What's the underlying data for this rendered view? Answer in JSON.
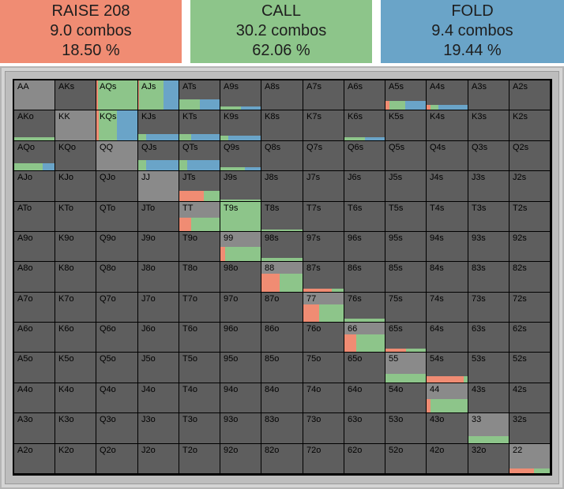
{
  "colors": {
    "raise": "#f08c73",
    "call": "#8dc58a",
    "fold": "#6aa4c8",
    "cell": "#5e5e5e",
    "gray": "#8a8a8a"
  },
  "summary": [
    {
      "action": "RAISE 208",
      "combos": "9.0 combos",
      "percent": "18.50 %",
      "color": "#f08c73"
    },
    {
      "action": "CALL",
      "combos": "30.2 combos",
      "percent": "62.06 %",
      "color": "#8dc58a"
    },
    {
      "action": "FOLD",
      "combos": "9.4 combos",
      "percent": "19.44 %",
      "color": "#6aa4c8"
    }
  ],
  "grid": [
    [
      "AA",
      "AKs",
      "AQs",
      "AJs",
      "ATs",
      "A9s",
      "A8s",
      "A7s",
      "A6s",
      "A5s",
      "A4s",
      "A3s",
      "A2s"
    ],
    [
      "AKo",
      "KK",
      "KQs",
      "KJs",
      "KTs",
      "K9s",
      "K8s",
      "K7s",
      "K6s",
      "K5s",
      "K4s",
      "K3s",
      "K2s"
    ],
    [
      "AQo",
      "KQo",
      "QQ",
      "QJs",
      "QTs",
      "Q9s",
      "Q8s",
      "Q7s",
      "Q6s",
      "Q5s",
      "Q4s",
      "Q3s",
      "Q2s"
    ],
    [
      "AJo",
      "KJo",
      "QJo",
      "JJ",
      "JTs",
      "J9s",
      "J8s",
      "J7s",
      "J6s",
      "J5s",
      "J4s",
      "J3s",
      "J2s"
    ],
    [
      "ATo",
      "KTo",
      "QTo",
      "JTo",
      "TT",
      "T9s",
      "T8s",
      "T7s",
      "T6s",
      "T5s",
      "T4s",
      "T3s",
      "T2s"
    ],
    [
      "A9o",
      "K9o",
      "Q9o",
      "J9o",
      "T9o",
      "99",
      "98s",
      "97s",
      "96s",
      "95s",
      "94s",
      "93s",
      "92s"
    ],
    [
      "A8o",
      "K8o",
      "Q8o",
      "J8o",
      "T8o",
      "98o",
      "88",
      "87s",
      "86s",
      "85s",
      "84s",
      "83s",
      "82s"
    ],
    [
      "A7o",
      "K7o",
      "Q7o",
      "J7o",
      "T7o",
      "97o",
      "87o",
      "77",
      "76s",
      "75s",
      "74s",
      "73s",
      "72s"
    ],
    [
      "A6o",
      "K6o",
      "Q6o",
      "J6o",
      "T6o",
      "96o",
      "86o",
      "76o",
      "66",
      "65s",
      "64s",
      "63s",
      "62s"
    ],
    [
      "A5o",
      "K5o",
      "Q5o",
      "J5o",
      "T5o",
      "95o",
      "85o",
      "75o",
      "65o",
      "55",
      "54s",
      "53s",
      "52s"
    ],
    [
      "A4o",
      "K4o",
      "Q4o",
      "J4o",
      "T4o",
      "94o",
      "84o",
      "74o",
      "64o",
      "54o",
      "44",
      "43s",
      "42s"
    ],
    [
      "A3o",
      "K3o",
      "Q3o",
      "J3o",
      "T3o",
      "93o",
      "83o",
      "73o",
      "63o",
      "53o",
      "43o",
      "33",
      "32s"
    ],
    [
      "A2o",
      "K2o",
      "Q2o",
      "J2o",
      "T2o",
      "92o",
      "82o",
      "72o",
      "62o",
      "52o",
      "42o",
      "32o",
      "22"
    ]
  ],
  "hand_strategy": {
    "AA": {
      "weight": 1.0,
      "raise": 0.0,
      "call": 0.0,
      "fold": 0.0
    },
    "AQs": {
      "weight": 1.0,
      "raise": 0.03,
      "call": 0.97,
      "fold": 0.0
    },
    "AJs": {
      "weight": 1.0,
      "raise": 0.02,
      "call": 0.6,
      "fold": 0.38
    },
    "ATs": {
      "weight": 0.35,
      "raise": 0.0,
      "call": 0.5,
      "fold": 0.5
    },
    "A9s": {
      "weight": 0.12,
      "raise": 0.0,
      "call": 0.5,
      "fold": 0.5
    },
    "A5s": {
      "weight": 0.3,
      "raise": 0.1,
      "call": 0.4,
      "fold": 0.5
    },
    "A4s": {
      "weight": 0.15,
      "raise": 0.1,
      "call": 0.2,
      "fold": 0.7
    },
    "AKo": {
      "weight": 0.1,
      "raise": 0.0,
      "call": 1.0,
      "fold": 0.0
    },
    "KK": {
      "weight": 1.0,
      "raise": 0.0,
      "call": 0.0,
      "fold": 0.0
    },
    "KQs": {
      "weight": 1.0,
      "raise": 0.06,
      "call": 0.44,
      "fold": 0.5
    },
    "KJs": {
      "weight": 0.2,
      "raise": 0.0,
      "call": 0.2,
      "fold": 0.8
    },
    "KTs": {
      "weight": 0.2,
      "raise": 0.0,
      "call": 0.3,
      "fold": 0.7
    },
    "K9s": {
      "weight": 0.15,
      "raise": 0.0,
      "call": 0.2,
      "fold": 0.8
    },
    "K6s": {
      "weight": 0.1,
      "raise": 0.0,
      "call": 0.5,
      "fold": 0.5
    },
    "AQo": {
      "weight": 0.25,
      "raise": 0.0,
      "call": 0.7,
      "fold": 0.3
    },
    "QQ": {
      "weight": 1.0,
      "raise": 0.0,
      "call": 0.0,
      "fold": 0.0
    },
    "QJs": {
      "weight": 0.35,
      "raise": 0.0,
      "call": 0.2,
      "fold": 0.8
    },
    "QTs": {
      "weight": 0.35,
      "raise": 0.0,
      "call": 0.2,
      "fold": 0.8
    },
    "Q9s": {
      "weight": 0.1,
      "raise": 0.0,
      "call": 0.6,
      "fold": 0.4
    },
    "JJ": {
      "weight": 1.0,
      "raise": 0.0,
      "call": 0.0,
      "fold": 0.0
    },
    "JTs": {
      "weight": 0.35,
      "raise": 0.6,
      "call": 0.4,
      "fold": 0.0
    },
    "J9s": {
      "weight": 0.05,
      "raise": 0.0,
      "call": 1.0,
      "fold": 0.0
    },
    "TT": {
      "weight": 1.0,
      "raise": 0.0,
      "call": 0.0,
      "fold": 0.0
    },
    "T9s": {
      "weight": 1.0,
      "raise": 0.0,
      "call": 1.0,
      "fold": 0.0
    },
    "T8s": {
      "weight": 0.05,
      "raise": 0.0,
      "call": 1.0,
      "fold": 0.0
    },
    "99": {
      "weight": 1.0,
      "raise": 0.0,
      "call": 0.0,
      "fold": 0.0
    },
    "98s": {
      "weight": 0.12,
      "raise": 0.0,
      "call": 1.0,
      "fold": 0.0
    },
    "88": {
      "weight": 1.0,
      "raise": 0.0,
      "call": 0.0,
      "fold": 0.0
    },
    "87s": {
      "weight": 0.1,
      "raise": 0.7,
      "call": 0.3,
      "fold": 0.0
    },
    "77": {
      "weight": 1.0,
      "raise": 0.0,
      "call": 0.0,
      "fold": 0.0
    },
    "76s": {
      "weight": 0.1,
      "raise": 0.0,
      "call": 1.0,
      "fold": 0.0
    },
    "66": {
      "weight": 1.0,
      "raise": 0.0,
      "call": 0.0,
      "fold": 0.0
    },
    "65s": {
      "weight": 0.1,
      "raise": 0.5,
      "call": 0.5,
      "fold": 0.0
    },
    "55": {
      "weight": 1.0,
      "raise": 0.0,
      "call": 0.0,
      "fold": 0.0
    },
    "54s": {
      "weight": 0.2,
      "raise": 0.9,
      "call": 0.1,
      "fold": 0.0
    },
    "44": {
      "weight": 1.0,
      "raise": 0.0,
      "call": 0.0,
      "fold": 0.0
    },
    "33": {
      "weight": 1.0,
      "raise": 0.0,
      "call": 0.0,
      "fold": 0.0
    },
    "22": {
      "weight": 1.0,
      "raise": 0.0,
      "call": 0.0,
      "fold": 0.0
    }
  },
  "pair_strategy": {
    "AA": {
      "gray": 1.0,
      "raise": 0.0,
      "call": 0.0,
      "fold": 0.0
    },
    "KK": {
      "gray": 1.0,
      "raise": 0.0,
      "call": 0.0,
      "fold": 0.0
    },
    "QQ": {
      "gray": 1.0,
      "raise": 0.0,
      "call": 0.0,
      "fold": 0.0
    },
    "JJ": {
      "gray": 1.0,
      "raise": 0.0,
      "call": 0.0,
      "fold": 0.0
    },
    "TT": {
      "gray": 0.55,
      "raise": 0.3,
      "call": 0.7,
      "fold": 0.0
    },
    "99": {
      "gray": 0.5,
      "raise": 0.12,
      "call": 0.88,
      "fold": 0.0
    },
    "88": {
      "gray": 0.4,
      "raise": 0.45,
      "call": 0.55,
      "fold": 0.0
    },
    "77": {
      "gray": 0.4,
      "raise": 0.4,
      "call": 0.6,
      "fold": 0.0
    },
    "66": {
      "gray": 0.4,
      "raise": 0.3,
      "call": 0.7,
      "fold": 0.0
    },
    "55": {
      "gray": 0.7,
      "raise": 0.0,
      "call": 1.0,
      "fold": 0.0
    },
    "44": {
      "gray": 0.55,
      "raise": 0.1,
      "call": 0.9,
      "fold": 0.0
    },
    "33": {
      "gray": 0.75,
      "raise": 0.0,
      "call": 1.0,
      "fold": 0.0
    },
    "22": {
      "gray": 0.85,
      "raise": 0.6,
      "call": 0.4,
      "fold": 0.0
    }
  }
}
